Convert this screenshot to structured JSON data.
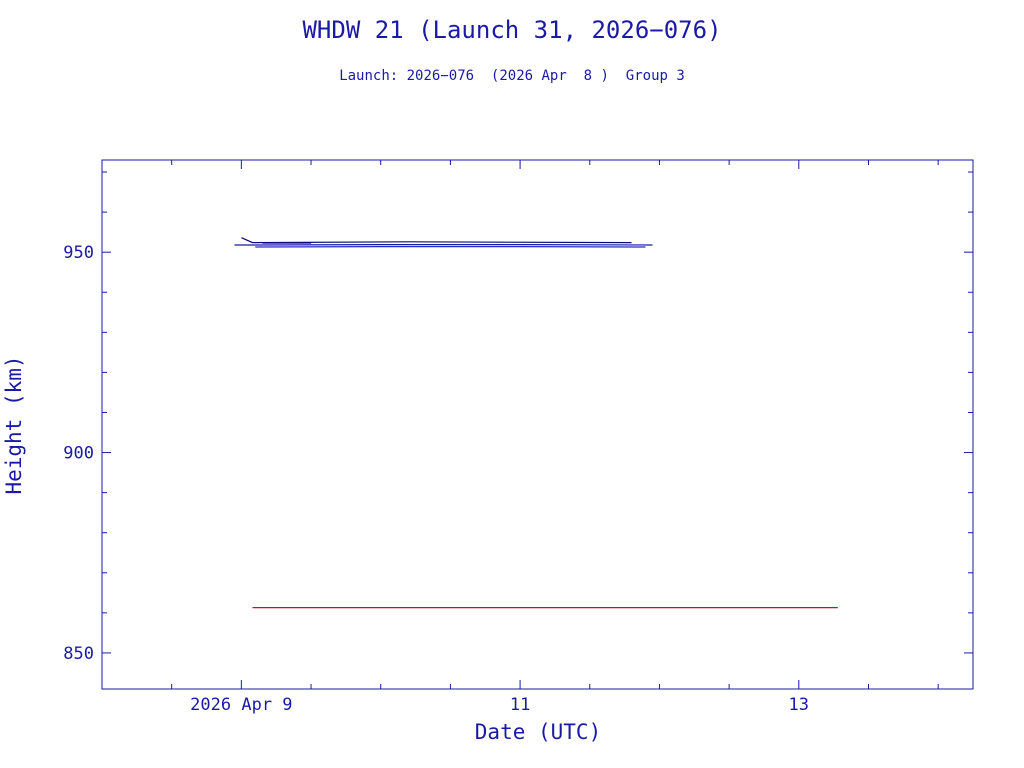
{
  "chart_data": {
    "type": "line",
    "title": "WHDW 21 (Launch 31, 2026−076)",
    "subtitle": "Launch: 2026−076  (2026 Apr  8 )  Group 3",
    "xlabel": "Date (UTC)",
    "ylabel": "Height (km)",
    "x_unit": "day of April 2026 (UTC)",
    "xlim": [
      8.0,
      14.25
    ],
    "ylim": [
      841,
      973
    ],
    "x_ticks": [
      {
        "value": 9,
        "label": "2026 Apr  9"
      },
      {
        "value": 11,
        "label": "11"
      },
      {
        "value": 13,
        "label": "13"
      }
    ],
    "y_ticks": [
      {
        "value": 850,
        "label": "850"
      },
      {
        "value": 900,
        "label": "900"
      },
      {
        "value": 950,
        "label": "950"
      }
    ],
    "grid": false,
    "legend": "none",
    "frame_color": "#1a1aa6",
    "series": [
      {
        "color": "#0a0a7a",
        "points": [
          [
            9.0,
            953.6
          ],
          [
            9.08,
            952.4
          ],
          [
            10.2,
            952.6
          ],
          [
            10.9,
            952.5
          ],
          [
            11.8,
            952.4
          ]
        ]
      },
      {
        "color": "#1a1aa6",
        "points": [
          [
            8.95,
            951.8
          ],
          [
            9.1,
            951.8
          ],
          [
            10.0,
            951.9
          ],
          [
            11.0,
            951.9
          ],
          [
            11.95,
            951.8
          ]
        ]
      },
      {
        "color": "#2a2ad0",
        "points": [
          [
            9.1,
            951.3
          ],
          [
            10.0,
            951.4
          ],
          [
            11.0,
            951.4
          ],
          [
            11.9,
            951.3
          ]
        ]
      },
      {
        "color": "#0a0a7a",
        "points": [
          [
            9.15,
            952.3
          ],
          [
            9.5,
            952.3
          ]
        ]
      },
      {
        "color": "#cc1111",
        "points": [
          [
            9.08,
            861.3
          ],
          [
            13.28,
            861.3
          ]
        ]
      }
    ]
  }
}
